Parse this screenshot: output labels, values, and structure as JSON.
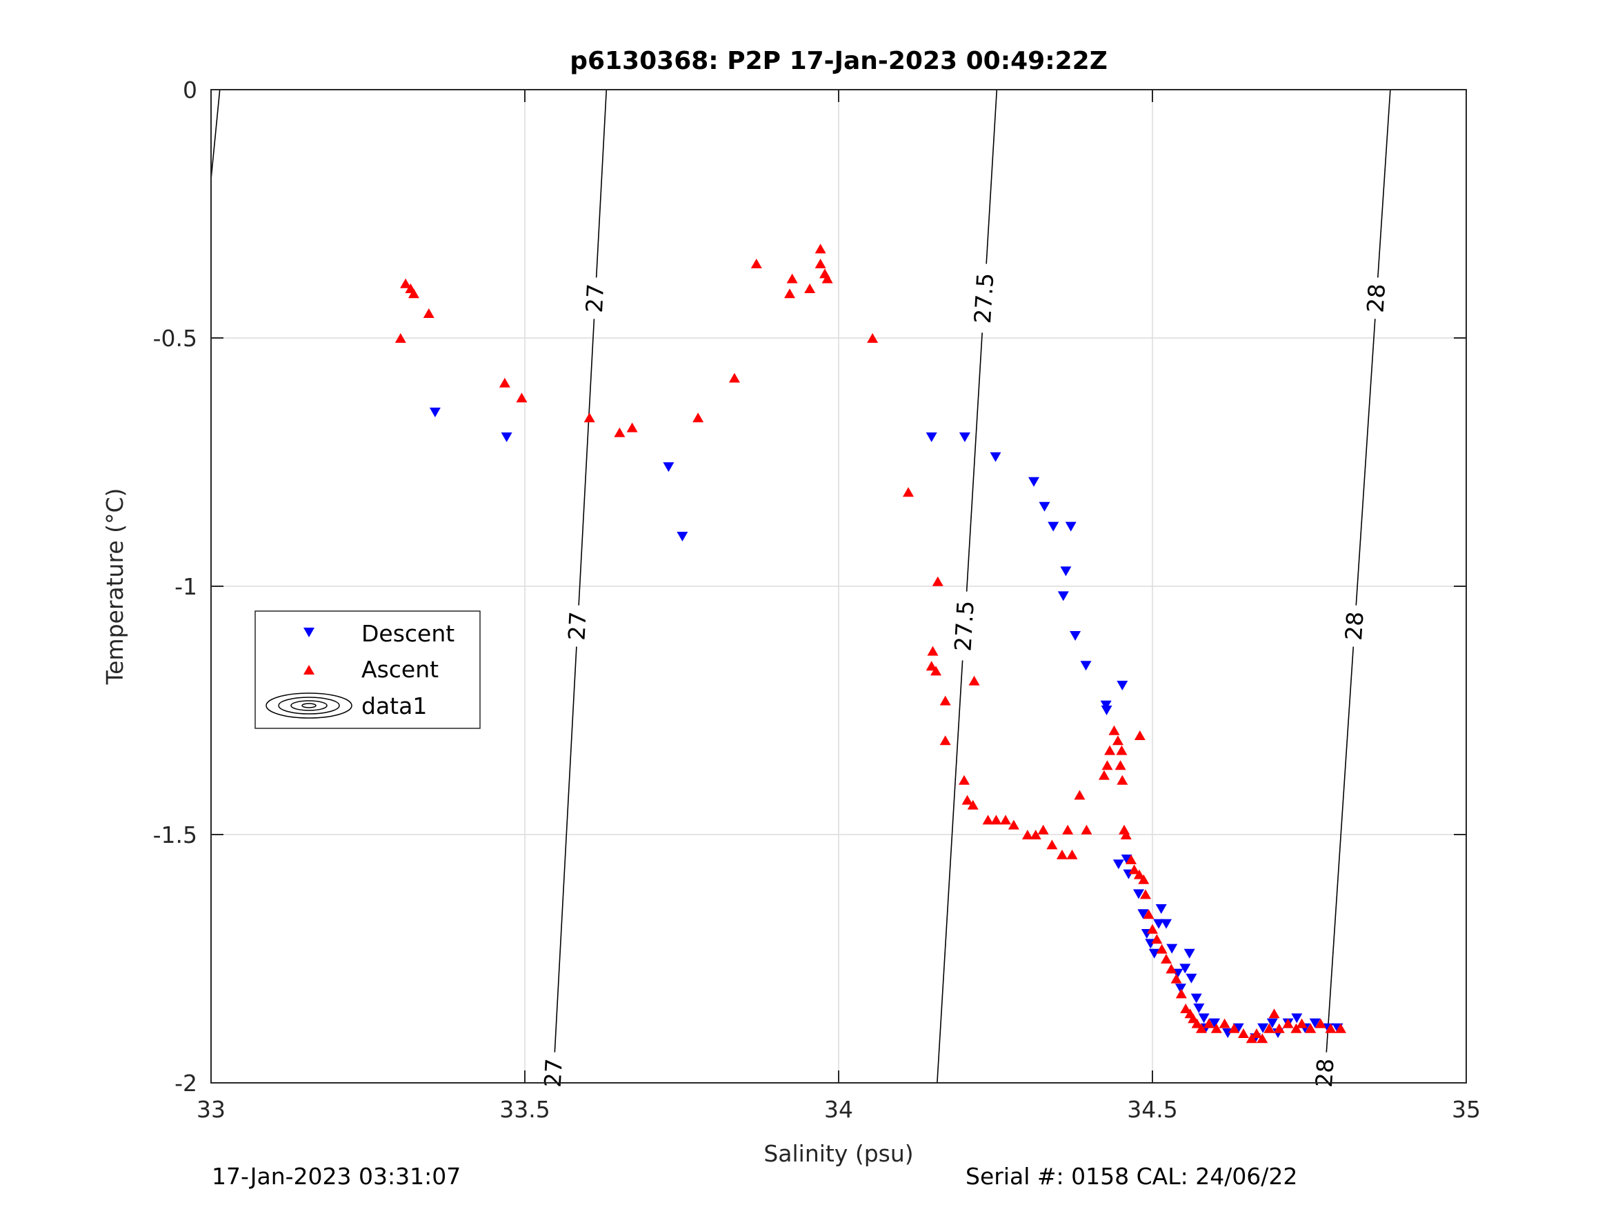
{
  "chart_data": {
    "type": "scatter",
    "title": "p6130368: P2P 17-Jan-2023 00:49:22Z",
    "xlabel": "Salinity (psu)",
    "ylabel": "Temperature (°C)",
    "xlim": [
      33,
      35
    ],
    "ylim": [
      -2,
      0
    ],
    "xticks": [
      33,
      33.5,
      34,
      34.5,
      35
    ],
    "yticks": [
      0,
      -0.5,
      -1,
      -1.5,
      -2
    ],
    "xtick_labels": [
      "33",
      "33.5",
      "34",
      "34.5",
      "35"
    ],
    "ytick_labels": [
      "0",
      "-0.5",
      "-1",
      "-1.5",
      "-2"
    ],
    "grid": true,
    "legend_position": "left",
    "legend": [
      "Descent",
      "Ascent",
      "data1"
    ],
    "colors": {
      "descent": "#0000ff",
      "ascent": "#ff0000",
      "contour": "#000000",
      "grid": "#dcdcdc"
    },
    "series": [
      {
        "name": "Descent",
        "marker": "triangle-down",
        "points": [
          [
            33.357,
            -0.65
          ],
          [
            33.471,
            -0.7
          ],
          [
            33.729,
            -0.76
          ],
          [
            33.751,
            -0.9
          ],
          [
            34.148,
            -0.7
          ],
          [
            34.201,
            -0.7
          ],
          [
            34.25,
            -0.74
          ],
          [
            34.311,
            -0.79
          ],
          [
            34.328,
            -0.84
          ],
          [
            34.342,
            -0.88
          ],
          [
            34.37,
            -0.88
          ],
          [
            34.362,
            -0.97
          ],
          [
            34.358,
            -1.02
          ],
          [
            34.377,
            -1.1
          ],
          [
            34.394,
            -1.16
          ],
          [
            34.426,
            -1.24
          ],
          [
            34.427,
            -1.25
          ],
          [
            34.452,
            -1.2
          ],
          [
            34.446,
            -1.56
          ],
          [
            34.459,
            -1.55
          ],
          [
            34.462,
            -1.58
          ],
          [
            34.478,
            -1.62
          ],
          [
            34.485,
            -1.66
          ],
          [
            34.491,
            -1.7
          ],
          [
            34.497,
            -1.72
          ],
          [
            34.503,
            -1.74
          ],
          [
            34.51,
            -1.68
          ],
          [
            34.514,
            -1.65
          ],
          [
            34.522,
            -1.68
          ],
          [
            34.531,
            -1.73
          ],
          [
            34.54,
            -1.78
          ],
          [
            34.545,
            -1.81
          ],
          [
            34.552,
            -1.77
          ],
          [
            34.559,
            -1.74
          ],
          [
            34.562,
            -1.79
          ],
          [
            34.57,
            -1.83
          ],
          [
            34.574,
            -1.85
          ],
          [
            34.582,
            -1.87
          ],
          [
            34.585,
            -1.89
          ],
          [
            34.599,
            -1.88
          ],
          [
            34.62,
            -1.9
          ],
          [
            34.637,
            -1.89
          ],
          [
            34.664,
            -1.91
          ],
          [
            34.676,
            -1.89
          ],
          [
            34.691,
            -1.88
          ],
          [
            34.7,
            -1.9
          ],
          [
            34.716,
            -1.88
          ],
          [
            34.73,
            -1.87
          ],
          [
            34.743,
            -1.89
          ],
          [
            34.759,
            -1.88
          ],
          [
            34.78,
            -1.89
          ],
          [
            34.795,
            -1.89
          ]
        ]
      },
      {
        "name": "Ascent",
        "marker": "triangle-up",
        "points": [
          [
            33.302,
            -0.5
          ],
          [
            33.31,
            -0.39
          ],
          [
            33.318,
            -0.4
          ],
          [
            33.323,
            -0.41
          ],
          [
            33.347,
            -0.45
          ],
          [
            33.468,
            -0.59
          ],
          [
            33.495,
            -0.62
          ],
          [
            33.603,
            -0.66
          ],
          [
            33.651,
            -0.69
          ],
          [
            33.671,
            -0.68
          ],
          [
            33.776,
            -0.66
          ],
          [
            33.834,
            -0.58
          ],
          [
            33.869,
            -0.35
          ],
          [
            33.922,
            -0.41
          ],
          [
            33.926,
            -0.38
          ],
          [
            33.954,
            -0.4
          ],
          [
            33.971,
            -0.35
          ],
          [
            33.971,
            -0.32
          ],
          [
            33.978,
            -0.37
          ],
          [
            33.982,
            -0.38
          ],
          [
            34.054,
            -0.5
          ],
          [
            34.111,
            -0.81
          ],
          [
            34.15,
            -1.13
          ],
          [
            34.148,
            -1.16
          ],
          [
            34.155,
            -1.17
          ],
          [
            34.158,
            -0.99
          ],
          [
            34.17,
            -1.23
          ],
          [
            34.17,
            -1.31
          ],
          [
            34.216,
            -1.19
          ],
          [
            34.2,
            -1.39
          ],
          [
            34.205,
            -1.43
          ],
          [
            34.214,
            -1.44
          ],
          [
            34.238,
            -1.47
          ],
          [
            34.251,
            -1.47
          ],
          [
            34.266,
            -1.47
          ],
          [
            34.279,
            -1.48
          ],
          [
            34.301,
            -1.5
          ],
          [
            34.314,
            -1.5
          ],
          [
            34.326,
            -1.49
          ],
          [
            34.34,
            -1.52
          ],
          [
            34.356,
            -1.54
          ],
          [
            34.365,
            -1.49
          ],
          [
            34.372,
            -1.54
          ],
          [
            34.384,
            -1.42
          ],
          [
            34.395,
            -1.49
          ],
          [
            34.423,
            -1.38
          ],
          [
            34.428,
            -1.36
          ],
          [
            34.432,
            -1.33
          ],
          [
            34.439,
            -1.29
          ],
          [
            34.445,
            -1.31
          ],
          [
            34.451,
            -1.33
          ],
          [
            34.449,
            -1.36
          ],
          [
            34.452,
            -1.39
          ],
          [
            34.48,
            -1.3
          ],
          [
            34.455,
            -1.49
          ],
          [
            34.458,
            -1.5
          ],
          [
            34.466,
            -1.55
          ],
          [
            34.471,
            -1.57
          ],
          [
            34.479,
            -1.58
          ],
          [
            34.486,
            -1.59
          ],
          [
            34.489,
            -1.62
          ],
          [
            34.494,
            -1.66
          ],
          [
            34.5,
            -1.69
          ],
          [
            34.507,
            -1.71
          ],
          [
            34.515,
            -1.73
          ],
          [
            34.522,
            -1.75
          ],
          [
            34.53,
            -1.77
          ],
          [
            34.538,
            -1.79
          ],
          [
            34.546,
            -1.82
          ],
          [
            34.553,
            -1.85
          ],
          [
            34.56,
            -1.86
          ],
          [
            34.565,
            -1.87
          ],
          [
            34.571,
            -1.88
          ],
          [
            34.578,
            -1.89
          ],
          [
            34.59,
            -1.88
          ],
          [
            34.602,
            -1.89
          ],
          [
            34.615,
            -1.88
          ],
          [
            34.63,
            -1.89
          ],
          [
            34.645,
            -1.9
          ],
          [
            34.658,
            -1.91
          ],
          [
            34.666,
            -1.9
          ],
          [
            34.675,
            -1.91
          ],
          [
            34.686,
            -1.89
          ],
          [
            34.694,
            -1.86
          ],
          [
            34.702,
            -1.89
          ],
          [
            34.716,
            -1.88
          ],
          [
            34.729,
            -1.89
          ],
          [
            34.738,
            -1.88
          ],
          [
            34.752,
            -1.89
          ],
          [
            34.768,
            -1.88
          ],
          [
            34.784,
            -1.89
          ],
          [
            34.8,
            -1.89
          ]
        ]
      }
    ],
    "density_contours": [
      {
        "level": "27",
        "top": [
          33.63,
          0
        ],
        "bottom": [
          33.545,
          -2
        ],
        "labels_at": [
          -0.42,
          -1.08,
          -1.98
        ]
      },
      {
        "level": "27.5",
        "top": [
          34.252,
          0
        ],
        "bottom": [
          34.157,
          -2
        ],
        "labels_at": [
          -0.42,
          -1.08
        ]
      },
      {
        "level": "28",
        "top": [
          34.879,
          0
        ],
        "bottom": [
          34.774,
          -2
        ],
        "labels_at": [
          -0.42,
          -1.08,
          -1.98
        ]
      }
    ],
    "partial_contour_top_left": {
      "top": [
        33.014,
        0
      ],
      "bottom": [
        33.0,
        -0.18
      ]
    }
  },
  "footer": {
    "timestamp": "17-Jan-2023 03:31:07",
    "serial": "Serial #: 0158  CAL: 24/06/22"
  }
}
